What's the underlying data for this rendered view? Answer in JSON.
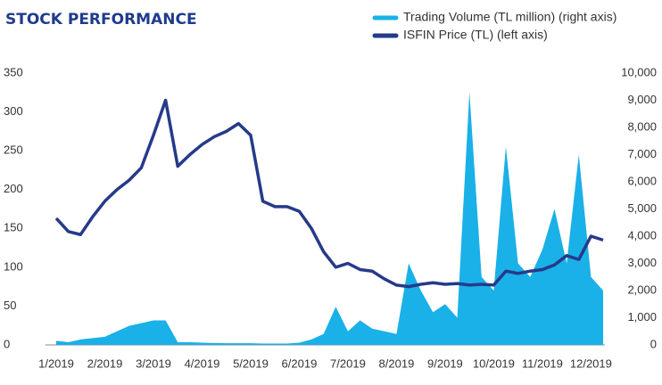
{
  "chart_data": {
    "type": "dual_area_line",
    "title": "STOCK PERFORMANCE",
    "categories": [
      "1/2019",
      null,
      null,
      null,
      "2/2019",
      null,
      null,
      null,
      "3/2019",
      null,
      null,
      null,
      "4/2019",
      null,
      null,
      null,
      "5/2019",
      null,
      null,
      null,
      "6/2019",
      null,
      null,
      null,
      "7/2019",
      null,
      null,
      null,
      "8/2019",
      null,
      null,
      null,
      "9/2019",
      null,
      null,
      null,
      "10/2019",
      null,
      null,
      null,
      "11/2019",
      null,
      null,
      null,
      "12/2019",
      null
    ],
    "series": [
      {
        "name": "Trading Volume (TL million) (right axis)",
        "color": "#1ab0e8",
        "axis": "y2",
        "kind": "area",
        "values": [
          150,
          100,
          200,
          250,
          300,
          500,
          700,
          800,
          900,
          900,
          100,
          100,
          80,
          70,
          60,
          60,
          60,
          50,
          50,
          50,
          80,
          200,
          400,
          1400,
          500,
          900,
          600,
          500,
          400,
          3000,
          2000,
          1200,
          1500,
          1000,
          9300,
          2500,
          2000,
          7300,
          3000,
          2500,
          3500,
          5000,
          3000,
          7000,
          2500,
          2000
        ]
      },
      {
        "name": "ISFIN Price (TL) (left axis)",
        "color": "#263a8a",
        "axis": "y",
        "kind": "line",
        "values": [
          163,
          146,
          142,
          165,
          185,
          200,
          212,
          228,
          270,
          315,
          230,
          245,
          258,
          268,
          275,
          285,
          270,
          185,
          178,
          178,
          172,
          150,
          120,
          100,
          105,
          97,
          95,
          85,
          77,
          75,
          78,
          80,
          78,
          79,
          77,
          78,
          77,
          95,
          92,
          95,
          97,
          103,
          115,
          110,
          140,
          135
        ]
      }
    ],
    "ylim": [
      0,
      350
    ],
    "yticks": [
      0,
      50,
      100,
      150,
      200,
      250,
      300,
      350
    ],
    "y2lim": [
      0,
      10000
    ],
    "y2ticks": [
      0,
      {
        "value": 1000,
        "label": "1,000"
      },
      {
        "value": 2000,
        "label": "2,000"
      },
      {
        "value": 3000,
        "label": "3,000"
      },
      {
        "value": 4000,
        "label": "4,000"
      },
      {
        "value": 5000,
        "label": "5,000"
      },
      {
        "value": 6000,
        "label": "6,000"
      },
      {
        "value": 7000,
        "label": "7,000"
      },
      {
        "value": 8000,
        "label": "8,000"
      },
      {
        "value": 9000,
        "label": "9,000"
      },
      {
        "value": 10000,
        "label": "10,000"
      }
    ],
    "grid": false
  }
}
